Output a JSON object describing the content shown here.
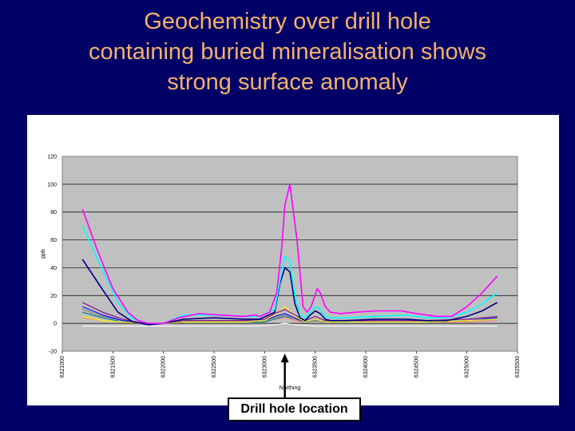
{
  "slide": {
    "title_lines": [
      "Geochemistry over drill hole",
      "containing buried mineralisation shows",
      "strong surface anomaly"
    ],
    "callout_label": "Drill hole location",
    "colors": {
      "background": "#000066",
      "title": "#F5B26B",
      "plot_bg": "#C0C0C0"
    }
  },
  "chart_data": {
    "type": "line",
    "xlabel": "Northing",
    "ylabel": "ppb",
    "ylim": [
      -20,
      120
    ],
    "yticks": [
      -20,
      0,
      20,
      40,
      60,
      80,
      100,
      120
    ],
    "xlim": [
      6321000,
      6325500
    ],
    "x_tick_labels": [
      "6321000",
      "6321500",
      "6322000",
      "6322500",
      "6323000",
      "6323500",
      "6324000",
      "6324500",
      "6325000",
      "6325500"
    ],
    "grid": "horizontal",
    "legend": "none",
    "drill_hole_northing": 6323200,
    "series": [
      {
        "color": "#FF00FF",
        "x": [
          6321200,
          6321350,
          6321500,
          6321650,
          6321750,
          6321850,
          6322000,
          6322150,
          6322350,
          6322550,
          6322800,
          6322900,
          6322950,
          6323050,
          6323120,
          6323170,
          6323200,
          6323250,
          6323320,
          6323380,
          6323420,
          6323460,
          6323520,
          6323550,
          6323600,
          6323650,
          6323750,
          6323900,
          6324100,
          6324350,
          6324500,
          6324700,
          6324850,
          6325000,
          6325150,
          6325300
        ],
        "y": [
          82,
          52,
          25,
          8,
          2,
          0,
          0,
          4,
          7,
          6,
          5,
          6,
          5,
          8,
          22,
          55,
          85,
          100,
          60,
          12,
          8,
          12,
          25,
          22,
          12,
          8,
          7,
          8,
          9,
          9,
          7,
          5,
          5,
          12,
          22,
          34
        ]
      },
      {
        "color": "#00FFFF",
        "x": [
          6321200,
          6321400,
          6321550,
          6321700,
          6321850,
          6322000,
          6322200,
          6322500,
          6322800,
          6322950,
          6323100,
          6323150,
          6323200,
          6323250,
          6323300,
          6323350,
          6323400,
          6323450,
          6323500,
          6323550,
          6323600,
          6323650,
          6323800,
          6324100,
          6324400,
          6324600,
          6324800,
          6325000,
          6325150,
          6325300
        ],
        "y": [
          70,
          38,
          15,
          3,
          0,
          0,
          6,
          6,
          5,
          5,
          10,
          30,
          48,
          45,
          20,
          6,
          4,
          8,
          12,
          10,
          5,
          4,
          4,
          5,
          6,
          4,
          4,
          8,
          14,
          22
        ]
      },
      {
        "color": "#000080",
        "x": [
          6321200,
          6321400,
          6321550,
          6321700,
          6321850,
          6322000,
          6322200,
          6322500,
          6322800,
          6322950,
          6323100,
          6323150,
          6323200,
          6323250,
          6323300,
          6323350,
          6323400,
          6323450,
          6323500,
          6323550,
          6323600,
          6323650,
          6323800,
          6324100,
          6324400,
          6324600,
          6324800,
          6325000,
          6325150,
          6325300
        ],
        "y": [
          46,
          24,
          8,
          1,
          -1,
          0,
          3,
          4,
          3,
          3,
          8,
          28,
          40,
          37,
          14,
          4,
          2,
          6,
          9,
          7,
          3,
          2,
          2,
          3,
          3,
          2,
          2,
          5,
          9,
          15
        ]
      },
      {
        "color": "#800080",
        "x": [
          6321200,
          6321400,
          6321600,
          6321800,
          6322000,
          6322200,
          6322500,
          6322800,
          6323000,
          6323100,
          6323200,
          6323300,
          6323400,
          6323500,
          6323600,
          6323800,
          6324200,
          6324600,
          6325000,
          6325300
        ],
        "y": [
          15,
          8,
          3,
          0,
          0,
          2,
          2,
          2,
          3,
          7,
          10,
          6,
          2,
          5,
          2,
          2,
          2,
          2,
          3,
          5
        ]
      },
      {
        "color": "#FFFF00",
        "x": [
          6321200,
          6321400,
          6321600,
          6321800,
          6322000,
          6322200,
          6322500,
          6322800,
          6323000,
          6323100,
          6323200,
          6323300,
          6323400,
          6323500,
          6323600,
          6323800,
          6324200,
          6324600,
          6325000,
          6325300
        ],
        "y": [
          5,
          2,
          1,
          0,
          0,
          1,
          1,
          1,
          2,
          6,
          12,
          5,
          1,
          3,
          1,
          1,
          1,
          1,
          2,
          3
        ]
      },
      {
        "color": "#0000FF",
        "x": [
          6321200,
          6321400,
          6321600,
          6321800,
          6322000,
          6322200,
          6322500,
          6322800,
          6323000,
          6323100,
          6323200,
          6323300,
          6323400,
          6323500,
          6323600,
          6323800,
          6324200,
          6324600,
          6325000,
          6325300
        ],
        "y": [
          12,
          6,
          2,
          0,
          0,
          1,
          1,
          1,
          2,
          5,
          7,
          4,
          1,
          3,
          1,
          1,
          1,
          1,
          2,
          4
        ]
      },
      {
        "color": "#808080",
        "x": [
          6321200,
          6321400,
          6321600,
          6321800,
          6322000,
          6322200,
          6322500,
          6322800,
          6323000,
          6323100,
          6323200,
          6323300,
          6323400,
          6323500,
          6323600,
          6323800,
          6324200,
          6324600,
          6325000,
          6325300
        ],
        "y": [
          10,
          5,
          2,
          0,
          0,
          1,
          1,
          1,
          2,
          4,
          6,
          3,
          1,
          2,
          1,
          1,
          1,
          1,
          2,
          3
        ]
      },
      {
        "color": "#008080",
        "x": [
          6321200,
          6321400,
          6321600,
          6321800,
          6322000,
          6322200,
          6322500,
          6322800,
          6323000,
          6323100,
          6323200,
          6323300,
          6323400,
          6323500,
          6323600,
          6323800,
          6324200,
          6324600,
          6325000,
          6325300
        ],
        "y": [
          8,
          4,
          1,
          0,
          0,
          1,
          1,
          1,
          1,
          3,
          5,
          3,
          1,
          2,
          1,
          1,
          1,
          1,
          2,
          3
        ]
      },
      {
        "color": "#FFFFFF",
        "x": [
          6321200,
          6321500,
          6321800,
          6322100,
          6322500,
          6322900,
          6323100,
          6323200,
          6323300,
          6323500,
          6323800,
          6324200,
          6324600,
          6325000,
          6325300
        ],
        "y": [
          -2,
          -2,
          -2,
          -2,
          -2,
          -2,
          -1,
          0,
          -1,
          -2,
          -2,
          -2,
          -2,
          -2,
          -2
        ]
      },
      {
        "color": "#FF8080",
        "x": [
          6321200,
          6321400,
          6321600,
          6321800,
          6322000,
          6322200,
          6322500,
          6322800,
          6323000,
          6323100,
          6323200,
          6323300,
          6323400,
          6323500,
          6323600,
          6323800,
          6324200,
          6324600,
          6325000,
          6325300
        ],
        "y": [
          4,
          2,
          1,
          0,
          0,
          1,
          1,
          1,
          1,
          3,
          4,
          2,
          1,
          2,
          1,
          1,
          1,
          1,
          1,
          2
        ]
      }
    ]
  }
}
